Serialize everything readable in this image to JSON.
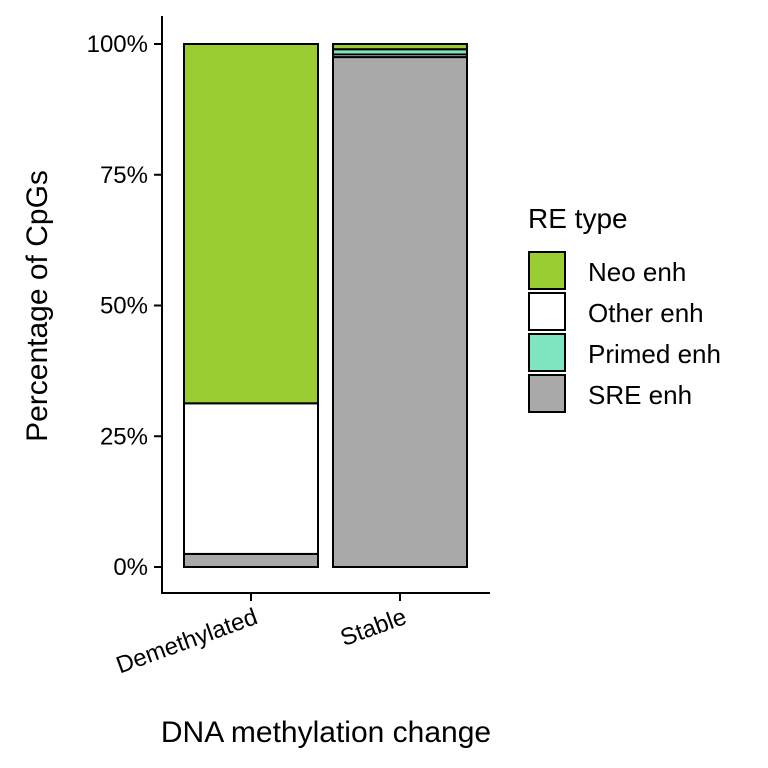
{
  "chart_data": {
    "type": "bar",
    "stacked": true,
    "percent": true,
    "categories": [
      "Demethylated",
      "Stable"
    ],
    "series": [
      {
        "name": "SRE enh",
        "color": "#a9a9a9",
        "values": [
          2.5,
          97.5
        ]
      },
      {
        "name": "Other enh",
        "color": "#ffffff",
        "values": [
          28.8,
          0.5
        ]
      },
      {
        "name": "Primed enh",
        "color": "#7fe5c1",
        "values": [
          0.0,
          1.0
        ]
      },
      {
        "name": "Neo enh",
        "color": "#9acd32",
        "values": [
          68.7,
          1.0
        ]
      }
    ],
    "xlabel": "DNA methylation change",
    "ylabel": "Percentage of CpGs",
    "ylim": [
      0,
      100
    ],
    "yticks": [
      0,
      25,
      50,
      75,
      100
    ],
    "ytick_labels": [
      "0%",
      "25%",
      "50%",
      "75%",
      "100%"
    ],
    "grid": false,
    "legend": {
      "title": "RE type",
      "position": "right",
      "entries": [
        "Neo enh",
        "Other enh",
        "Primed enh",
        "SRE enh"
      ]
    }
  }
}
